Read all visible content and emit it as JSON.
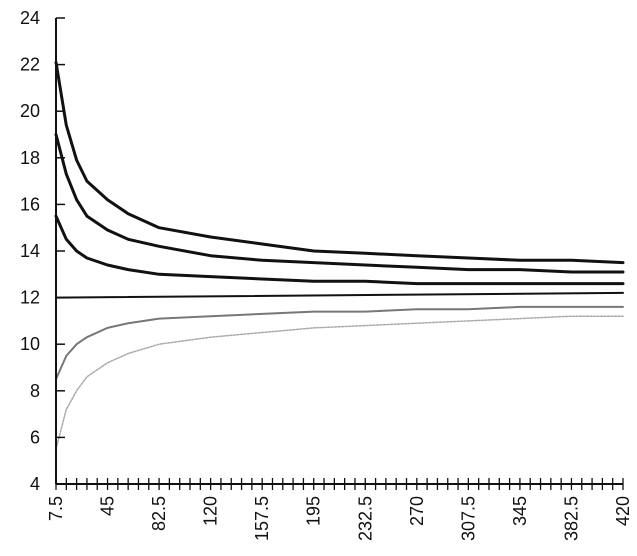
{
  "chart_data": {
    "type": "line",
    "title": "",
    "xlabel": "",
    "ylabel": "",
    "ylim": [
      4,
      24
    ],
    "xlim": [
      7.5,
      420
    ],
    "yticks": [
      4,
      6,
      8,
      10,
      12,
      14,
      16,
      18,
      20,
      22,
      24
    ],
    "ytick_labels": [
      "4",
      "6",
      "8",
      "10",
      "12",
      "14",
      "16",
      "18",
      "20",
      "22",
      "24"
    ],
    "xtick_labels": [
      "7.5",
      "45",
      "82.5",
      "120",
      "157.5",
      "195",
      "232.5",
      "270",
      "307.5",
      "345",
      "382.5",
      "420"
    ],
    "xticks": [
      7.5,
      45,
      82.5,
      120,
      157.5,
      195,
      232.5,
      270,
      307.5,
      345,
      382.5,
      420
    ],
    "minor_tick_step": 7.5,
    "grid": false,
    "legend": "none",
    "series": [
      {
        "color": "#111111",
        "style": "heavy",
        "x": [
          7.5,
          15,
          22.5,
          30,
          45,
          60,
          82.5,
          120,
          157.5,
          195,
          232.5,
          270,
          307.5,
          345,
          382.5,
          420
        ],
        "values": [
          22.1,
          19.4,
          17.9,
          17.0,
          16.2,
          15.6,
          15.0,
          14.6,
          14.3,
          14.0,
          13.9,
          13.8,
          13.7,
          13.6,
          13.6,
          13.5
        ]
      },
      {
        "color": "#111111",
        "style": "heavy",
        "x": [
          7.5,
          15,
          22.5,
          30,
          45,
          60,
          82.5,
          120,
          157.5,
          195,
          232.5,
          270,
          307.5,
          345,
          382.5,
          420
        ],
        "values": [
          19.0,
          17.3,
          16.2,
          15.5,
          14.9,
          14.5,
          14.2,
          13.8,
          13.6,
          13.5,
          13.4,
          13.3,
          13.2,
          13.2,
          13.1,
          13.1
        ]
      },
      {
        "color": "#111111",
        "style": "heavy",
        "x": [
          7.5,
          15,
          22.5,
          30,
          45,
          60,
          82.5,
          120,
          157.5,
          195,
          232.5,
          270,
          307.5,
          345,
          382.5,
          420
        ],
        "values": [
          15.5,
          14.5,
          14.0,
          13.7,
          13.4,
          13.2,
          13.0,
          12.9,
          12.8,
          12.7,
          12.7,
          12.6,
          12.6,
          12.6,
          12.6,
          12.6
        ]
      },
      {
        "color": "#111111",
        "style": "medium",
        "x": [
          7.5,
          420
        ],
        "values": [
          12.0,
          12.2
        ]
      },
      {
        "color": "#777777",
        "style": "light",
        "x": [
          7.5,
          15,
          22.5,
          30,
          45,
          60,
          82.5,
          120,
          157.5,
          195,
          232.5,
          270,
          307.5,
          345,
          382.5,
          420
        ],
        "values": [
          8.5,
          9.5,
          10.0,
          10.3,
          10.7,
          10.9,
          11.1,
          11.2,
          11.3,
          11.4,
          11.4,
          11.5,
          11.5,
          11.6,
          11.6,
          11.6
        ]
      },
      {
        "color": "#aaaaaa",
        "style": "faint",
        "x": [
          7.5,
          15,
          22.5,
          30,
          45,
          60,
          82.5,
          120,
          157.5,
          195,
          232.5,
          270,
          307.5,
          345,
          382.5,
          420
        ],
        "values": [
          5.5,
          7.2,
          8.0,
          8.6,
          9.2,
          9.6,
          10.0,
          10.3,
          10.5,
          10.7,
          10.8,
          10.9,
          11.0,
          11.1,
          11.2,
          11.2
        ]
      }
    ]
  }
}
